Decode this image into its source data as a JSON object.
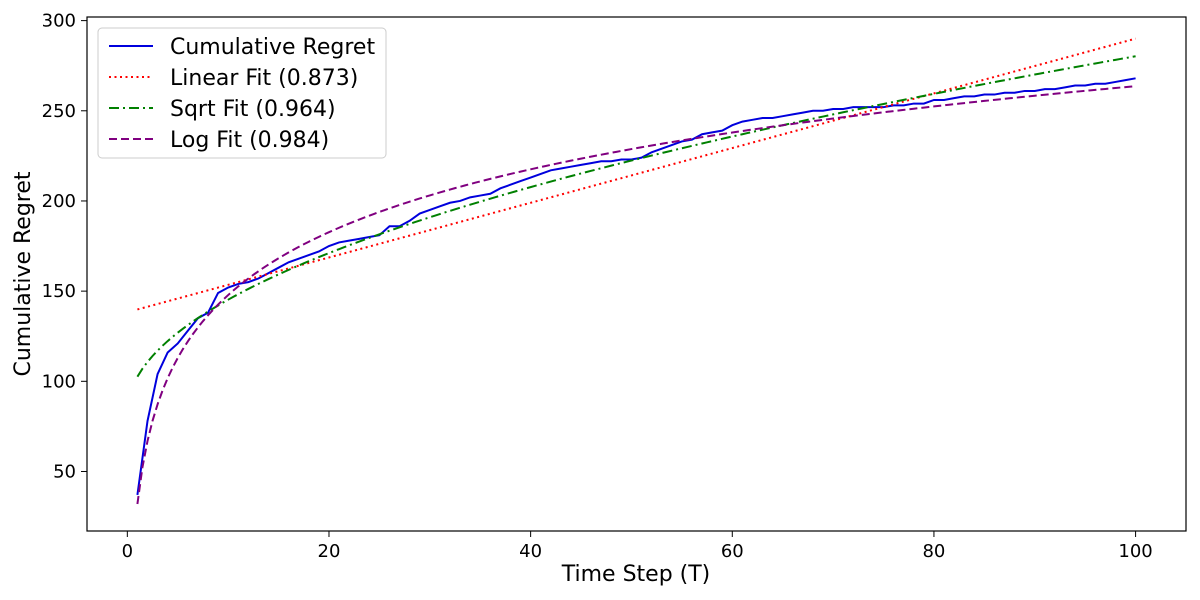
{
  "chart_data": {
    "type": "line",
    "title": "",
    "xlabel": "Time Step (T)",
    "ylabel": "Cumulative Regret",
    "xlim": [
      -4,
      105
    ],
    "ylim": [
      17,
      302
    ],
    "xticks": [
      0,
      20,
      40,
      60,
      80,
      100
    ],
    "yticks": [
      50,
      100,
      150,
      200,
      250,
      300
    ],
    "grid": false,
    "legend_position": "top-left",
    "series": [
      {
        "name": "Cumulative Regret",
        "color": "#0000dd",
        "style": "solid",
        "x": [
          1,
          2,
          3,
          4,
          5,
          6,
          7,
          8,
          9,
          10,
          11,
          12,
          13,
          14,
          15,
          16,
          17,
          18,
          19,
          20,
          21,
          22,
          23,
          24,
          25,
          26,
          27,
          28,
          29,
          30,
          31,
          32,
          33,
          34,
          35,
          36,
          37,
          38,
          39,
          40,
          41,
          42,
          43,
          44,
          45,
          46,
          47,
          48,
          49,
          50,
          51,
          52,
          53,
          54,
          55,
          56,
          57,
          58,
          59,
          60,
          61,
          62,
          63,
          64,
          65,
          66,
          67,
          68,
          69,
          70,
          71,
          72,
          73,
          74,
          75,
          76,
          77,
          78,
          79,
          80,
          81,
          82,
          83,
          84,
          85,
          86,
          87,
          88,
          89,
          90,
          91,
          92,
          93,
          94,
          95,
          96,
          97,
          98,
          99,
          100
        ],
        "y": [
          37,
          78,
          104,
          116,
          121,
          128,
          135,
          138,
          149,
          152,
          154,
          155,
          157,
          160,
          163,
          166,
          168,
          170,
          172,
          175,
          177,
          178,
          179,
          180,
          181,
          186,
          186,
          189,
          193,
          195,
          197,
          199,
          200,
          202,
          203,
          204,
          207,
          209,
          211,
          213,
          215,
          217,
          218,
          219,
          220,
          221,
          222,
          222,
          223,
          223,
          224,
          227,
          229,
          231,
          233,
          234,
          237,
          238,
          239,
          242,
          244,
          245,
          246,
          246,
          247,
          248,
          249,
          250,
          250,
          251,
          251,
          252,
          252,
          252,
          252,
          253,
          253,
          254,
          254,
          256,
          256,
          257,
          258,
          258,
          259,
          259,
          260,
          260,
          261,
          261,
          262,
          262,
          263,
          264,
          264,
          265,
          265,
          266,
          267,
          268
        ]
      },
      {
        "name": "Linear Fit (0.873)",
        "color": "#ff0000",
        "style": "dotted",
        "fit": "linear",
        "params": {
          "a": 138.32,
          "b": 1.5168
        }
      },
      {
        "name": "Sqrt Fit (0.964)",
        "color": "#008000",
        "style": "dashdot",
        "fit": "sqrt",
        "params": {
          "a": 82.83,
          "b": 19.74
        }
      },
      {
        "name": "Log Fit (0.984)",
        "color": "#800080",
        "style": "dashed",
        "fit": "log",
        "params": {
          "a": 32,
          "b": 50.3
        }
      }
    ]
  }
}
